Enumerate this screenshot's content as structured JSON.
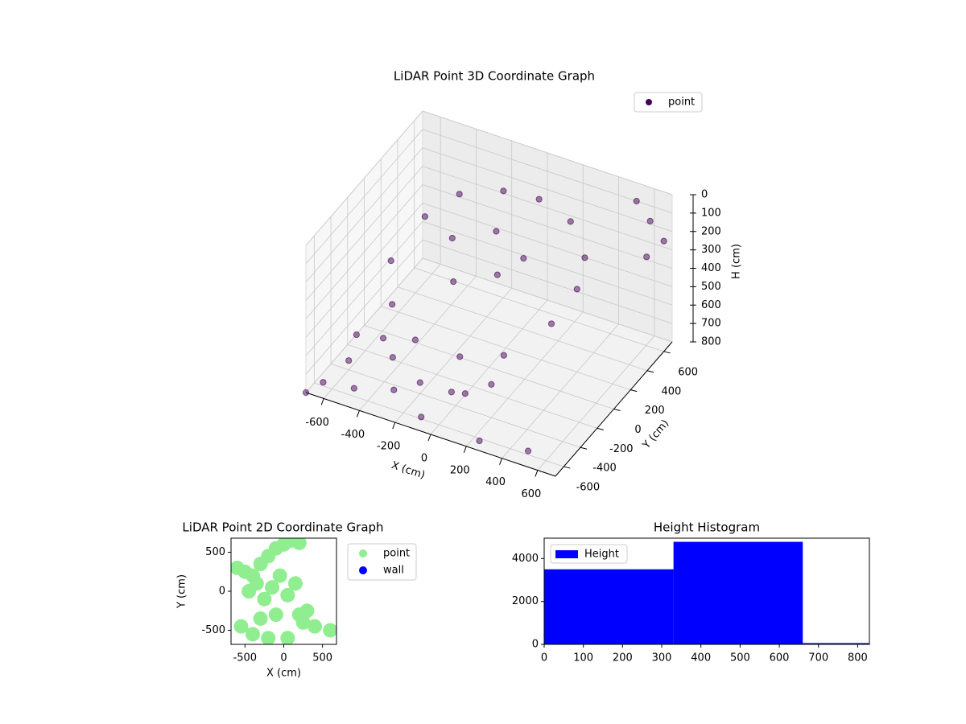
{
  "chart_data": [
    {
      "type": "scatter3d",
      "title": "LiDAR Point 3D Coordinate Graph",
      "x_label": "X (cm)",
      "y_label": "Y (cm)",
      "z_label": "H (cm)",
      "xlim": [
        -700,
        700
      ],
      "ylim": [
        -700,
        700
      ],
      "zlim": [
        800,
        0
      ],
      "xticks": [
        -600,
        -400,
        -200,
        0,
        200,
        400,
        600
      ],
      "yticks": [
        -600,
        -400,
        -200,
        0,
        200,
        400,
        600
      ],
      "zticks": [
        0,
        100,
        200,
        300,
        400,
        500,
        600,
        700,
        800
      ],
      "grid": true,
      "legend": "upper right",
      "series": [
        {
          "name": "point",
          "color": "#440154",
          "x": [
            -500,
            -400,
            -200,
            0,
            200,
            350,
            400,
            -550,
            -450,
            -250,
            0,
            200,
            350,
            -300,
            -100,
            100,
            -200,
            0,
            600,
            500,
            650,
            700,
            -650,
            -600,
            -500,
            -400,
            -300,
            -200,
            -100,
            0,
            -500,
            -650,
            100,
            200,
            250,
            500,
            -700
          ],
          "y": [
            300,
            500,
            600,
            600,
            550,
            400,
            200,
            0,
            -200,
            -350,
            -350,
            -250,
            0,
            200,
            300,
            200,
            0,
            100,
            650,
            700,
            500,
            600,
            -600,
            -400,
            -550,
            -300,
            -500,
            -400,
            -600,
            -450,
            -200,
            -200,
            -500,
            -400,
            -650,
            -600,
            -700
          ],
          "z": [
            300,
            250,
            220,
            200,
            230,
            300,
            350,
            400,
            500,
            550,
            560,
            540,
            450,
            300,
            250,
            280,
            400,
            350,
            150,
            100,
            250,
            200,
            780,
            750,
            790,
            720,
            760,
            740,
            790,
            700,
            700,
            730,
            650,
            620,
            780,
            780,
            800
          ]
        }
      ]
    },
    {
      "type": "scatter",
      "title": "LiDAR Point 2D Coordinate Graph",
      "x_label": "X (cm)",
      "y_label": "Y (cm)",
      "xlim": [
        -680,
        680
      ],
      "ylim": [
        -680,
        680
      ],
      "xticks": [
        -500,
        0,
        500
      ],
      "yticks": [
        -500,
        0,
        500
      ],
      "legend": "outside right",
      "series": [
        {
          "name": "point",
          "color": "#90ee90",
          "x": [
            -600,
            -500,
            -400,
            -300,
            -200,
            -100,
            0,
            100,
            200,
            -450,
            -350,
            -250,
            -150,
            -50,
            50,
            150,
            -550,
            -400,
            -300,
            -200,
            200,
            250,
            300,
            400,
            600,
            -100,
            50
          ],
          "y": [
            300,
            250,
            200,
            350,
            450,
            550,
            600,
            650,
            620,
            0,
            100,
            -100,
            50,
            200,
            -50,
            100,
            -450,
            -550,
            -350,
            -600,
            -300,
            -400,
            -250,
            -450,
            -500,
            -300,
            -600
          ]
        },
        {
          "name": "wall",
          "color": "#0000ff",
          "x": [],
          "y": []
        }
      ]
    },
    {
      "type": "histogram",
      "title": "Height Histogram",
      "bins": [
        0,
        330,
        660,
        990
      ],
      "values": [
        3500,
        4780,
        60
      ],
      "xlim": [
        0,
        830
      ],
      "ylim": [
        0,
        4950
      ],
      "xticks": [
        0,
        100,
        200,
        300,
        400,
        500,
        600,
        700,
        800
      ],
      "yticks": [
        0,
        2000,
        4000
      ],
      "series_name": "Height",
      "color": "#0000ff",
      "legend": "upper left"
    }
  ]
}
